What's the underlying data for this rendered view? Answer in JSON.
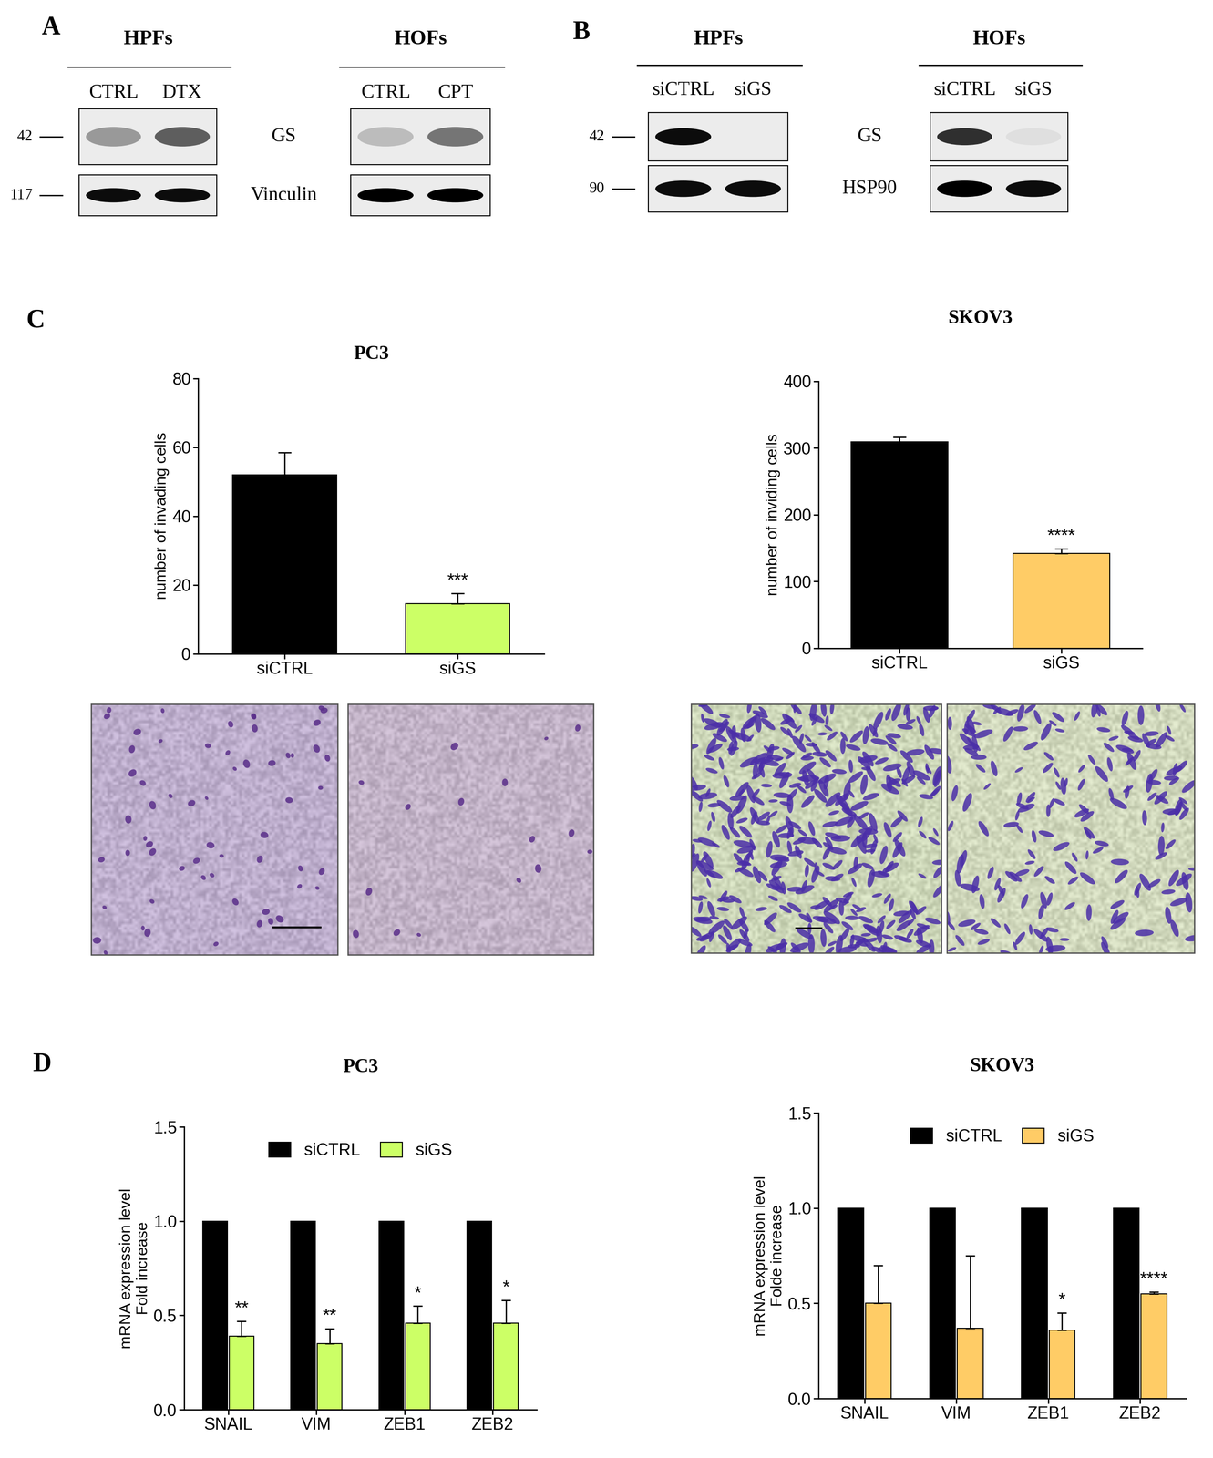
{
  "panel_labels": [
    "A",
    "B",
    "C",
    "D"
  ],
  "blots": [
    {
      "groups": [
        {
          "name": "HPFs",
          "lanes": [
            "CTRL",
            "DTX"
          ]
        },
        {
          "name": "HOFs",
          "lanes": [
            "CTRL",
            "CPT"
          ]
        }
      ],
      "rows": [
        {
          "name": "GS",
          "marker": 42
        },
        {
          "name": "Vinculin",
          "marker": 117
        }
      ]
    },
    {
      "groups": [
        {
          "name": "HPFs",
          "lanes": [
            "siCTRL",
            "siGS"
          ]
        },
        {
          "name": "HOFs",
          "lanes": [
            "siCTRL",
            "siGS"
          ]
        }
      ],
      "rows": [
        {
          "name": "GS",
          "marker": 42
        },
        {
          "name": "HSP90",
          "marker": 90
        }
      ]
    }
  ],
  "chart_data": [
    {
      "type": "bar",
      "title": "PC3",
      "ylabel": "number of invading cells",
      "categories": [
        "siCTRL",
        "siGS"
      ],
      "values": [
        52,
        14.5
      ],
      "errors": [
        6.5,
        3
      ],
      "colors": [
        "#000000",
        "#ccff66"
      ],
      "annotations": [
        null,
        "***"
      ],
      "ylim": [
        0,
        80
      ],
      "yticks": [
        0,
        20,
        40,
        60,
        80
      ]
    },
    {
      "type": "bar",
      "title": "SKOV3",
      "ylabel": "number of inviding cells",
      "categories": [
        "siCTRL",
        "siGS"
      ],
      "values": [
        309,
        142
      ],
      "errors": [
        7,
        7
      ],
      "colors": [
        "#000000",
        "#ffcc66"
      ],
      "annotations": [
        null,
        "****"
      ],
      "ylim": [
        0,
        400
      ],
      "yticks": [
        0,
        100,
        200,
        300,
        400
      ]
    },
    {
      "type": "bar",
      "title": "PC3",
      "ylabel": "mRNA expression level\nFold increase",
      "categories": [
        "SNAIL",
        "VIM",
        "ZEB1",
        "ZEB2"
      ],
      "series": [
        {
          "name": "siCTRL",
          "color": "#000000",
          "values": [
            1,
            1,
            1,
            1
          ]
        },
        {
          "name": "siGS",
          "color": "#ccff66",
          "values": [
            0.39,
            0.35,
            0.46,
            0.46
          ],
          "errors": [
            0.08,
            0.08,
            0.09,
            0.12
          ],
          "annotations": [
            "**",
            "**",
            "*",
            "*"
          ]
        }
      ],
      "ylim": [
        0,
        1.5
      ],
      "yticks": [
        0.0,
        0.5,
        1.0,
        1.5
      ],
      "legend": "upper center"
    },
    {
      "type": "bar",
      "title": "SKOV3",
      "ylabel": "mRNA expression level\nFolde increase",
      "categories": [
        "SNAIL",
        "VIM",
        "ZEB1",
        "ZEB2"
      ],
      "series": [
        {
          "name": "siCTRL",
          "color": "#000000",
          "values": [
            1,
            1,
            1,
            1
          ]
        },
        {
          "name": "siGS",
          "color": "#ffcc66",
          "values": [
            0.5,
            0.37,
            0.36,
            0.55
          ],
          "errors": [
            0.2,
            0.38,
            0.09,
            0.01
          ],
          "annotations": [
            null,
            null,
            "*",
            "****"
          ]
        }
      ],
      "ylim": [
        0,
        1.5
      ],
      "yticks": [
        0.0,
        0.5,
        1.0,
        1.5
      ],
      "legend": "upper center"
    }
  ]
}
